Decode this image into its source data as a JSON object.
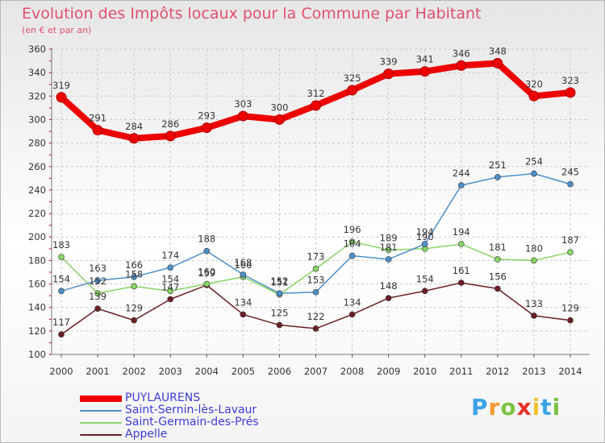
{
  "header": {
    "title": "Evolution des Impôts locaux pour la Commune par Habitant",
    "subtitle": "(en € et par an)"
  },
  "logo": {
    "letters": [
      "P",
      "r",
      "o",
      "x",
      "i",
      "t",
      "i"
    ],
    "colors": [
      "#3aa3e6",
      "#f29a2e",
      "#7cc243",
      "#e8332b",
      "#f2c12e",
      "#3aa3e6",
      "#7cc243"
    ]
  },
  "chart_data": {
    "type": "line",
    "x": [
      "2000",
      "2001",
      "2002",
      "2003",
      "2004",
      "2005",
      "2006",
      "2007",
      "2008",
      "2009",
      "2010",
      "2011",
      "2012",
      "2013",
      "2014"
    ],
    "ylim": [
      100,
      360
    ],
    "yticks": [
      "100",
      "120",
      "140",
      "160",
      "180",
      "200",
      "220",
      "240",
      "260",
      "280",
      "300",
      "320",
      "340",
      "360"
    ],
    "grid": true,
    "legend_position": "bottom-left",
    "series": [
      {
        "name": "PUYLAURENS",
        "color": "#ee0000",
        "values": [
          319,
          291,
          284,
          286,
          293,
          303,
          300,
          312,
          325,
          339,
          341,
          346,
          348,
          320,
          323
        ],
        "labels": [
          "319",
          "291",
          "284",
          "286",
          "293",
          "303",
          "300",
          "312",
          "325",
          "339",
          "341",
          "346",
          "348",
          "320",
          "323"
        ]
      },
      {
        "name": "Saint-Sernin-lès-Lavaur",
        "color": "#4d8fc9",
        "values": [
          154,
          163,
          166,
          174,
          188,
          168,
          152,
          153,
          184,
          181,
          194,
          244,
          251,
          254,
          245
        ],
        "labels": [
          "154",
          "163",
          "166",
          "174",
          "188",
          "168",
          "152",
          "153",
          "184",
          "181",
          "194",
          "244",
          "251",
          "254",
          "245"
        ]
      },
      {
        "name": "Saint-Germain-des-Prés",
        "color": "#88d466",
        "values": [
          183,
          152,
          158,
          154,
          160,
          166,
          151,
          173,
          196,
          189,
          190,
          194,
          181,
          180,
          187
        ],
        "labels": [
          "183",
          "152",
          "158",
          "154",
          "160",
          "166",
          "151",
          "173",
          "196",
          "189",
          "190",
          "194",
          "181",
          "180",
          "187"
        ]
      },
      {
        "name": "Appelle",
        "color": "#6b1f24",
        "values": [
          117,
          139,
          129,
          147,
          159,
          134,
          125,
          122,
          134,
          148,
          154,
          161,
          156,
          133,
          129
        ],
        "labels": [
          "117",
          "139",
          "129",
          "147",
          "159",
          "134",
          "125",
          "122",
          "134",
          "148",
          "154",
          "161",
          "156",
          "133",
          "129"
        ]
      }
    ]
  }
}
